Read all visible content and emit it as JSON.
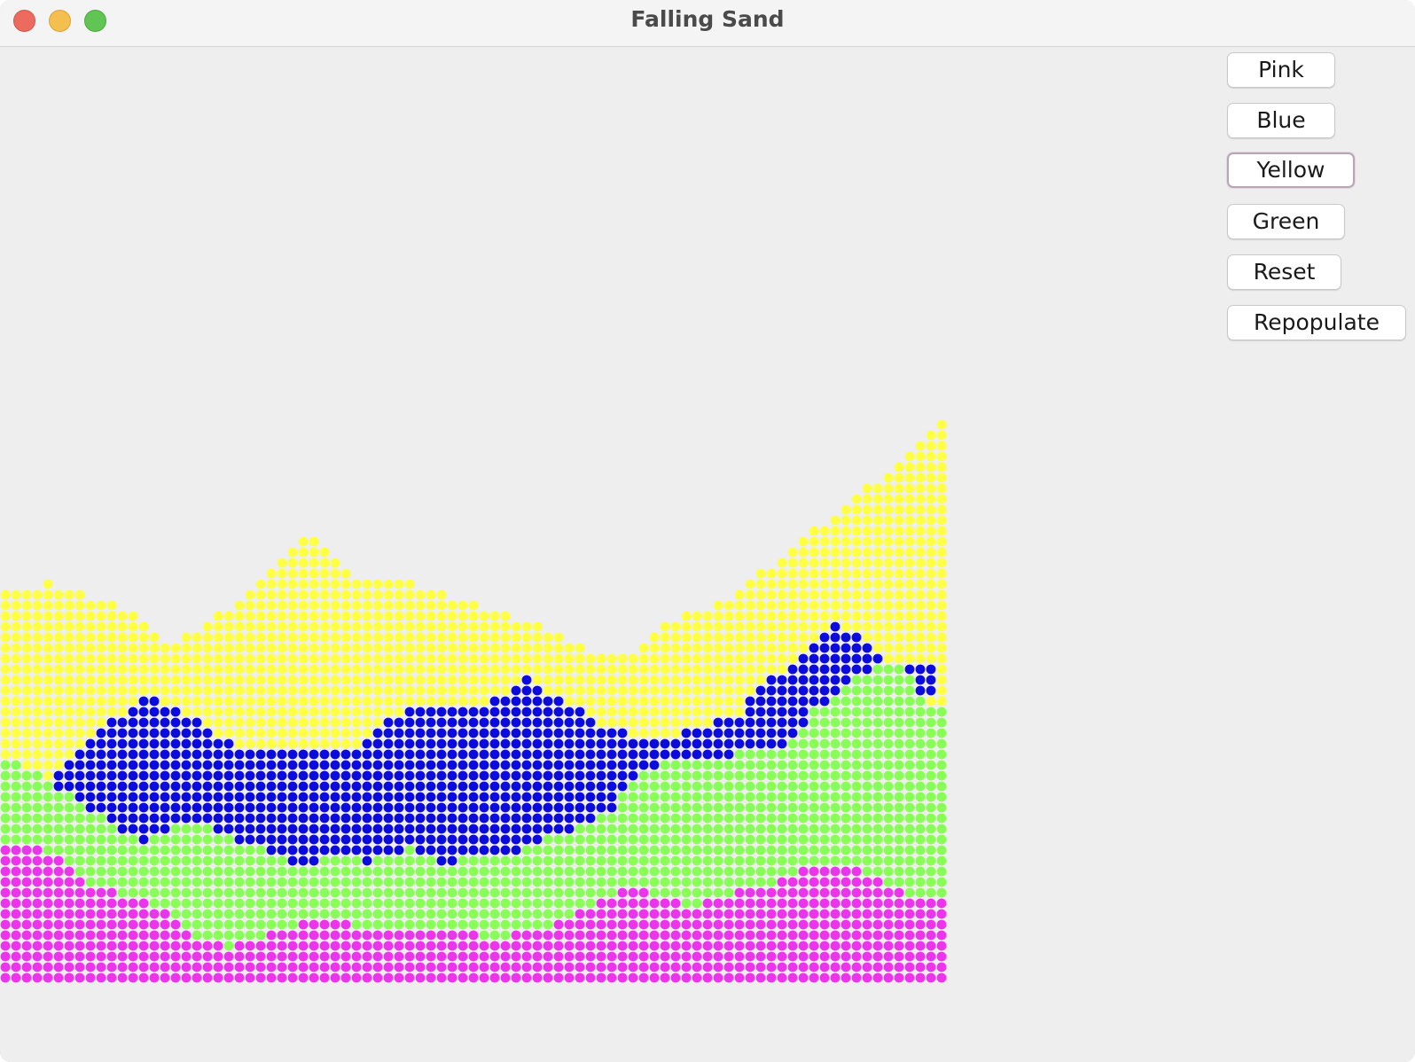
{
  "window": {
    "title": "Falling Sand"
  },
  "controls": {
    "buttons": [
      {
        "id": "pink",
        "label": "Pink"
      },
      {
        "id": "blue",
        "label": "Blue"
      },
      {
        "id": "yellow",
        "label": "Yellow",
        "focused": true
      },
      {
        "id": "green",
        "label": "Green"
      },
      {
        "id": "reset",
        "label": "Reset"
      },
      {
        "id": "repopulate",
        "label": "Repopulate"
      }
    ]
  },
  "colors": {
    "pink": "#ee33ee",
    "blue": "#0b0bdf",
    "yellow": "#ffff44",
    "green": "#88ff55",
    "background": "#eeeeee"
  }
}
